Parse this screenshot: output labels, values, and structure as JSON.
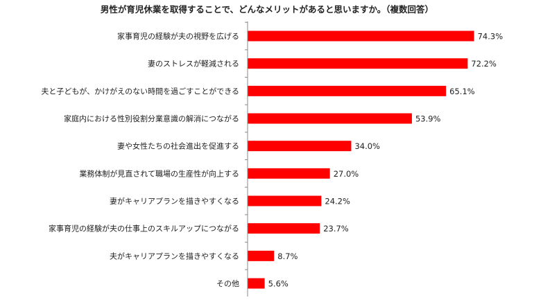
{
  "chart_data": {
    "type": "bar",
    "orientation": "horizontal",
    "title": "男性が育児休業を取得することで、どんなメリットがあると思いますか。（複数回答）",
    "categories": [
      "家事育児の経験が夫の視野を広げる",
      "妻のストレスが軽減される",
      "夫と子どもが、かけがえのない時間を過ごすことができる",
      "家庭内における性別役割分業意識の解消につながる",
      "妻や女性たちの社会進出を促進する",
      "業務体制が見直されて職場の生産性が向上する",
      "妻がキャリアプランを描きやすくなる",
      "家事育児の経験が夫の仕事上のスキルアップにつながる",
      "夫がキャリアプランを描きやすくなる",
      "その他"
    ],
    "values": [
      74.3,
      72.2,
      65.1,
      53.9,
      34.0,
      27.0,
      24.2,
      23.7,
      8.7,
      5.6
    ],
    "value_labels": [
      "74.3%",
      "72.2%",
      "65.1%",
      "53.9%",
      "34.0%",
      "27.0%",
      "24.2%",
      "23.7%",
      "8.7%",
      "5.6%"
    ],
    "unit": "%",
    "xlim": [
      0,
      100
    ],
    "grid": false,
    "legend": "none",
    "bar_color": "#ff0000",
    "axis_color": "#888888"
  }
}
